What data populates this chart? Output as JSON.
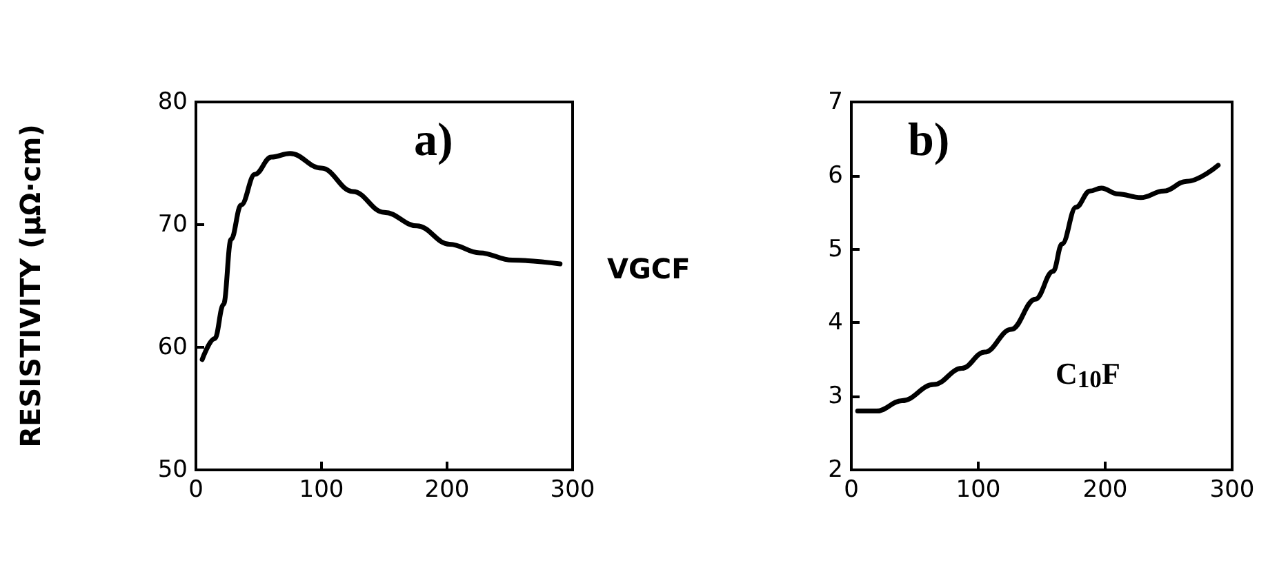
{
  "chart_data": [
    {
      "type": "line",
      "ylabel": "RESISTIVITY (μΩ·cm)",
      "annotations": [
        "a)",
        "VGCF"
      ],
      "series": [
        {
          "color": "#000000",
          "x": [
            5,
            15,
            22,
            28,
            36,
            47,
            60,
            75,
            100,
            125,
            150,
            176,
            202,
            226,
            252,
            290
          ],
          "values": [
            59,
            60.7,
            63.5,
            68.8,
            71.6,
            74.1,
            75.5,
            75.8,
            74.6,
            72.7,
            71,
            69.9,
            68.4,
            67.7,
            67.1,
            66.8
          ]
        }
      ],
      "xlim": [
        0,
        300
      ],
      "xticks": [
        0,
        100,
        200,
        300
      ],
      "ylim": [
        50,
        80
      ],
      "yticks": [
        50,
        60,
        70,
        80
      ],
      "grid": false,
      "marker": "none",
      "line_style": "solid"
    },
    {
      "type": "line",
      "annotations": [
        "b)",
        "C$_{10}$F"
      ],
      "series": [
        {
          "color": "#000000",
          "x": [
            5,
            20,
            40,
            65,
            87,
            105,
            126,
            145,
            159,
            166,
            177,
            188,
            197,
            210,
            228,
            246,
            264,
            289
          ],
          "values": [
            2.8,
            2.8,
            2.94,
            3.16,
            3.38,
            3.6,
            3.91,
            4.32,
            4.7,
            5.07,
            5.57,
            5.79,
            5.83,
            5.75,
            5.7,
            5.79,
            5.92,
            6.14
          ]
        }
      ],
      "xlim": [
        0,
        300
      ],
      "xticks": [
        0,
        100,
        200,
        300
      ],
      "ylim": [
        2,
        7
      ],
      "yticks": [
        2,
        3,
        4,
        5,
        6,
        7
      ],
      "grid": false,
      "marker": "none",
      "line_style": "solid"
    }
  ]
}
